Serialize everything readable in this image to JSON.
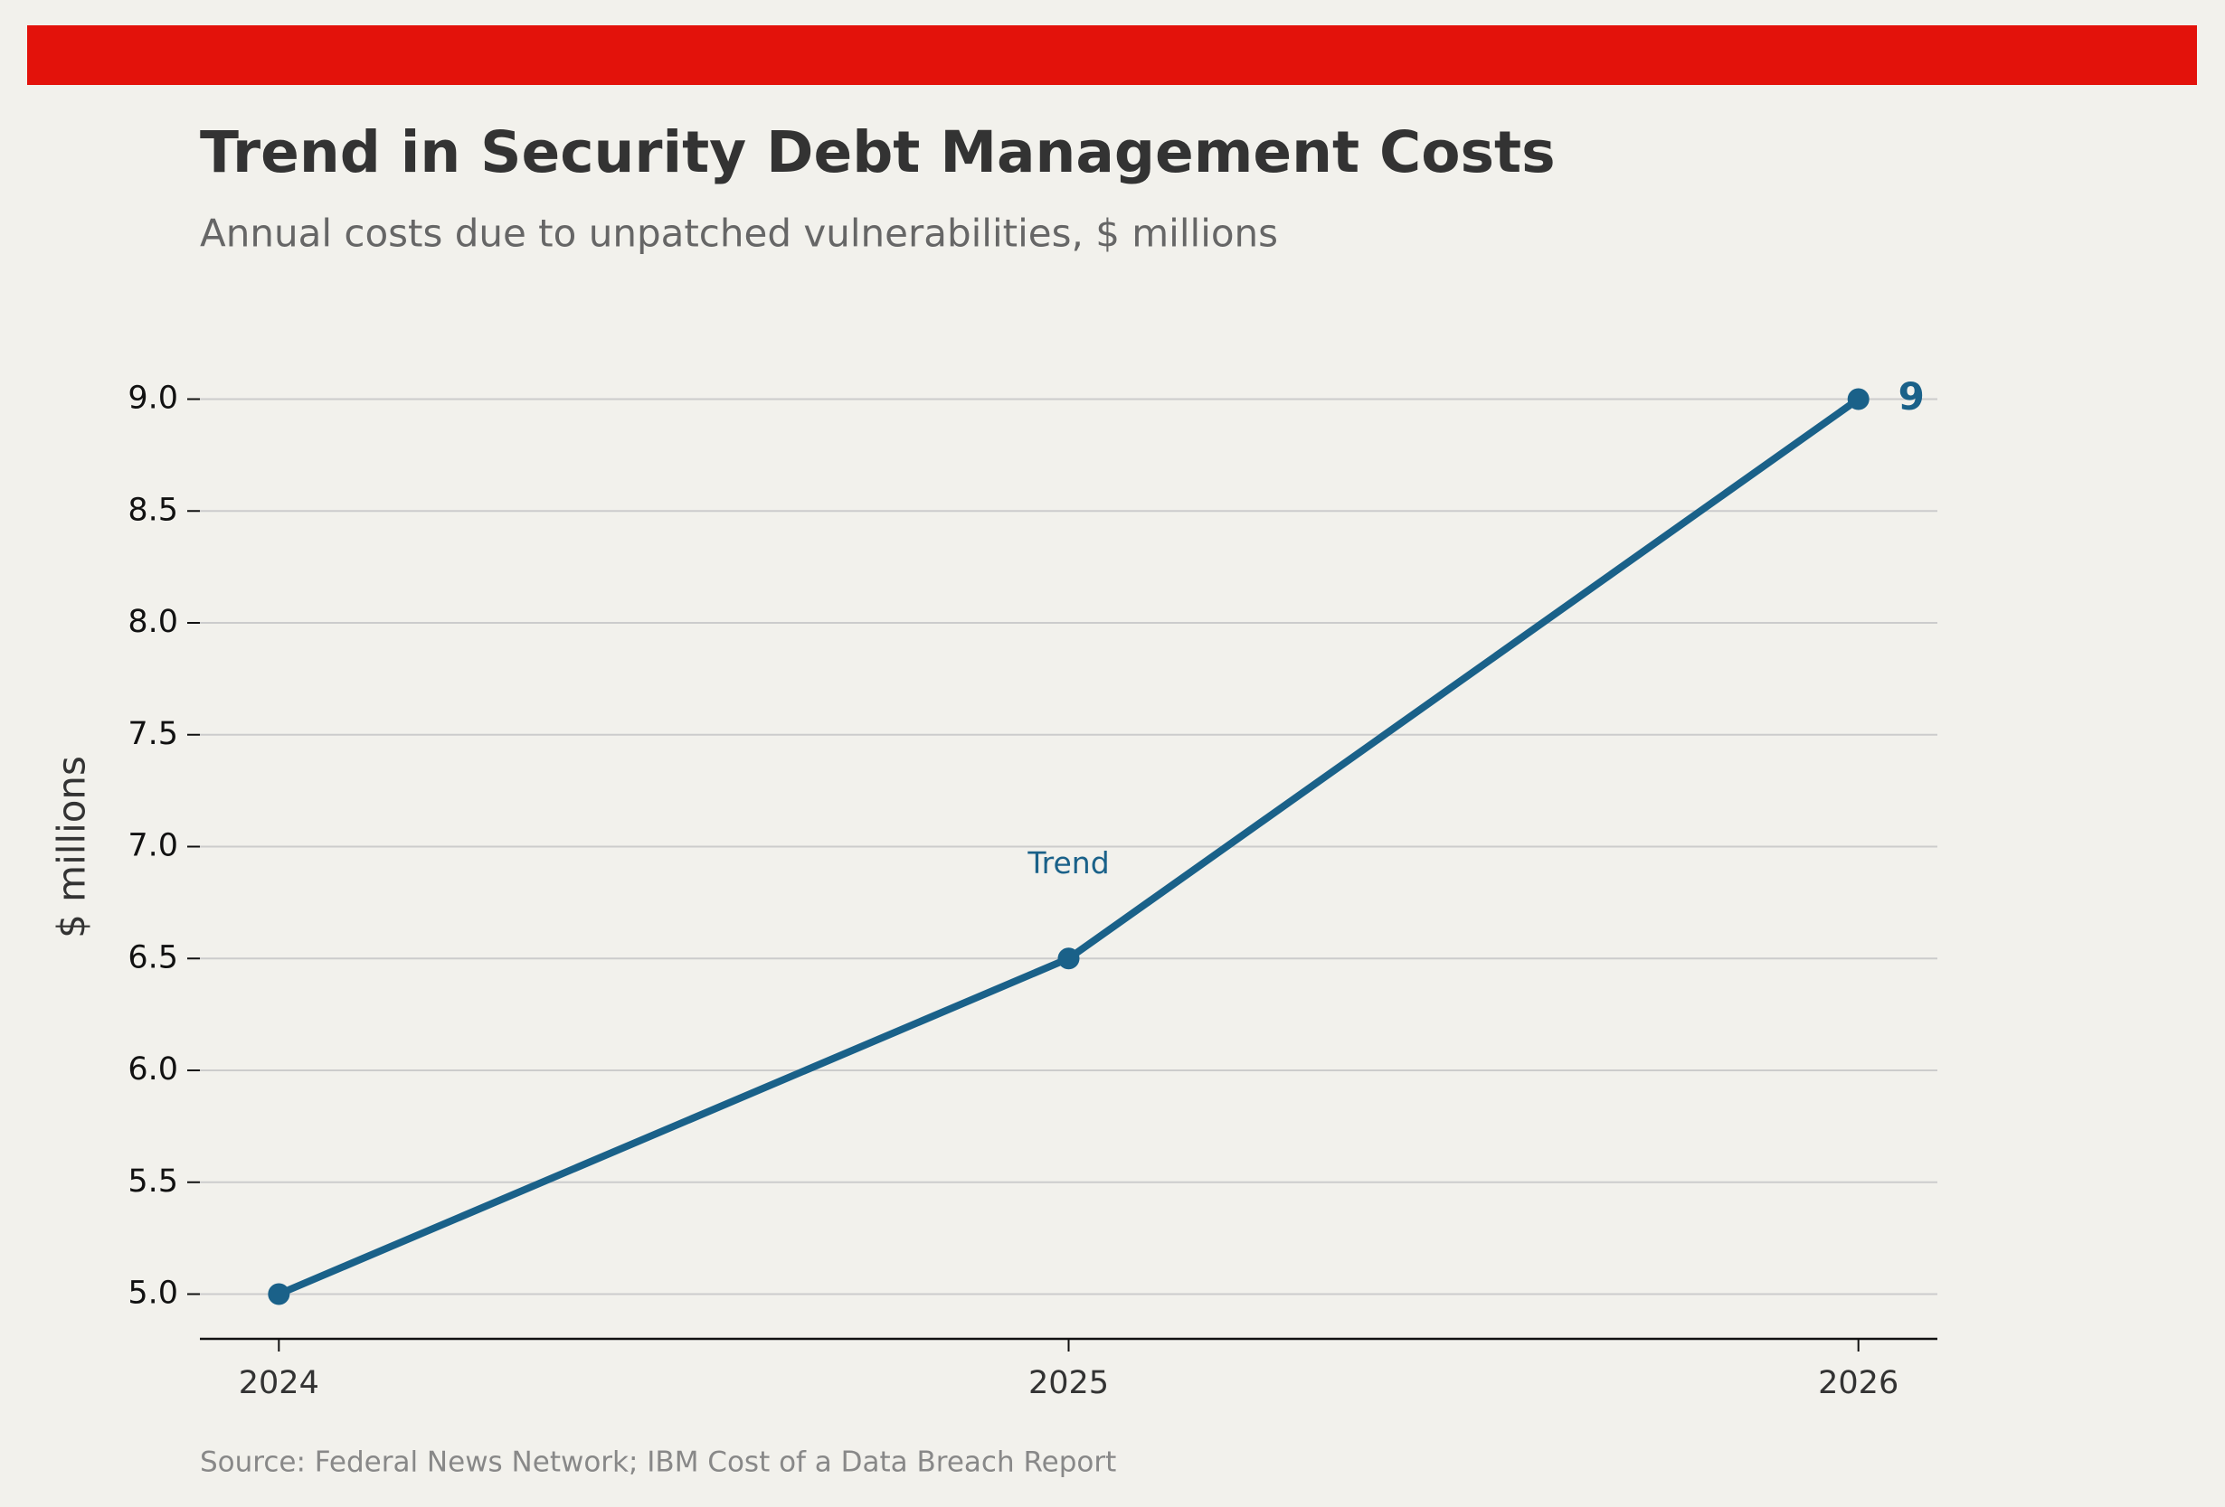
{
  "chart_data": {
    "type": "line",
    "title": "Trend in Security Debt Management Costs",
    "subtitle": "Annual costs due to unpatched vulnerabilities, $ millions",
    "y_label": "$ millions",
    "source": "Source: Federal News Network; IBM Cost of a Data Breach Report",
    "x": [
      2024,
      2025,
      2026
    ],
    "series": [
      {
        "name": "Trend",
        "color": "#1a6189",
        "values": [
          5,
          6.5,
          9
        ]
      }
    ],
    "xlim": [
      2023.9,
      2026.1
    ],
    "xticks": [
      2024,
      2025,
      2026
    ],
    "ylim": [
      4.8,
      9.2
    ],
    "yticks": [
      {
        "value": 5,
        "label": "5.0"
      },
      5.5,
      {
        "value": 6,
        "label": "6.0"
      },
      6.5,
      {
        "value": 7,
        "label": "7.0"
      },
      7.5,
      {
        "value": 8,
        "label": "8.0"
      },
      8.5,
      {
        "value": 9,
        "label": "9.0"
      }
    ],
    "grid": true,
    "label_last_point": true,
    "accent_color": "#e3120b"
  }
}
